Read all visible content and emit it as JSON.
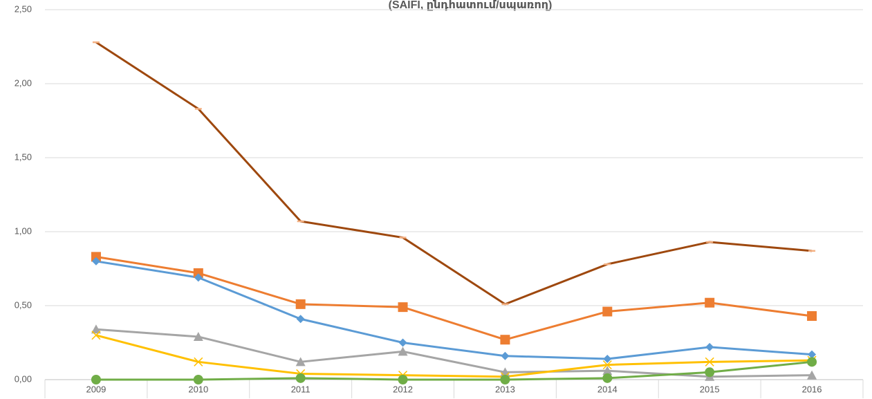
{
  "chart_data": {
    "type": "line",
    "title": "(SAIFI, ընդհատում/սպառող)",
    "categories": [
      "2009",
      "2010",
      "2011",
      "2012",
      "2013",
      "2014",
      "2015",
      "2016"
    ],
    "series": [
      {
        "color": "#9e480e",
        "marker": "dash",
        "values": [
          2.28,
          1.83,
          1.07,
          0.96,
          0.51,
          0.78,
          0.93,
          0.87
        ]
      },
      {
        "color": "#ed7d31",
        "marker": "square",
        "values": [
          0.83,
          0.72,
          0.51,
          0.49,
          0.27,
          0.46,
          0.52,
          0.43
        ]
      },
      {
        "color": "#5b9bd5",
        "marker": "diamond",
        "values": [
          0.8,
          0.69,
          0.41,
          0.25,
          0.16,
          0.14,
          0.22,
          0.17
        ]
      },
      {
        "color": "#a5a5a5",
        "marker": "triangle",
        "values": [
          0.34,
          0.29,
          0.12,
          0.19,
          0.05,
          0.06,
          0.02,
          0.03
        ]
      },
      {
        "color": "#ffc000",
        "marker": "x",
        "values": [
          0.3,
          0.12,
          0.04,
          0.03,
          0.02,
          0.1,
          0.12,
          0.13
        ]
      },
      {
        "color": "#70ad47",
        "marker": "circle",
        "values": [
          0,
          0,
          0.01,
          0,
          0,
          0.01,
          0.05,
          0.12
        ]
      }
    ],
    "ylim": [
      0,
      2.5
    ],
    "yticks": [
      {
        "value": 0,
        "label": "0,00"
      },
      {
        "value": 0.5,
        "label": "0,50"
      },
      {
        "value": 1,
        "label": "1,00"
      },
      {
        "value": 1.5,
        "label": "1,50"
      },
      {
        "value": 2,
        "label": "2,00"
      },
      {
        "value": 2.5,
        "label": "2,50"
      }
    ],
    "grid": true
  }
}
